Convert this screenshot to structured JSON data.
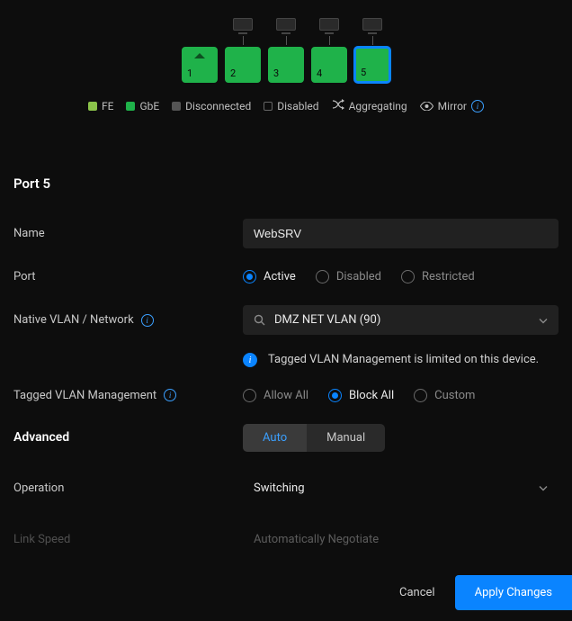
{
  "colors": {
    "gbe": "#1fb24a",
    "fe": "#8bc34a",
    "disconnected": "#555555",
    "accent": "#0a84ff",
    "background": "#0d0d0d",
    "input_bg": "#212121"
  },
  "ports": [
    {
      "num": "1",
      "state": "gbe",
      "uplink": true,
      "has_device": false,
      "selected": false
    },
    {
      "num": "2",
      "state": "gbe",
      "uplink": false,
      "has_device": true,
      "selected": false
    },
    {
      "num": "3",
      "state": "gbe",
      "uplink": false,
      "has_device": true,
      "selected": false
    },
    {
      "num": "4",
      "state": "gbe",
      "uplink": false,
      "has_device": true,
      "selected": false
    },
    {
      "num": "5",
      "state": "gbe",
      "uplink": false,
      "has_device": true,
      "selected": true
    }
  ],
  "legend": {
    "fe": "FE",
    "gbe": "GbE",
    "disconnected": "Disconnected",
    "disabled": "Disabled",
    "aggregating": "Aggregating",
    "mirror": "Mirror"
  },
  "title": "Port 5",
  "fields": {
    "name_label": "Name",
    "name_value": "WebSRV",
    "port_label": "Port",
    "port_options": {
      "active": "Active",
      "disabled": "Disabled",
      "restricted": "Restricted"
    },
    "port_selected": "active",
    "native_vlan_label": "Native VLAN / Network",
    "native_vlan_value": "DMZ NET VLAN (90)",
    "tagged_info": "Tagged VLAN Management is limited on this device.",
    "tagged_label": "Tagged VLAN Management",
    "tagged_options": {
      "allow": "Allow All",
      "block": "Block All",
      "custom": "Custom"
    },
    "tagged_selected": "block",
    "advanced_label": "Advanced",
    "advanced_options": {
      "auto": "Auto",
      "manual": "Manual"
    },
    "advanced_selected": "auto",
    "operation_label": "Operation",
    "operation_value": "Switching",
    "linkspeed_label": "Link Speed",
    "linkspeed_value": "Automatically Negotiate"
  },
  "footer": {
    "cancel": "Cancel",
    "apply": "Apply Changes"
  }
}
